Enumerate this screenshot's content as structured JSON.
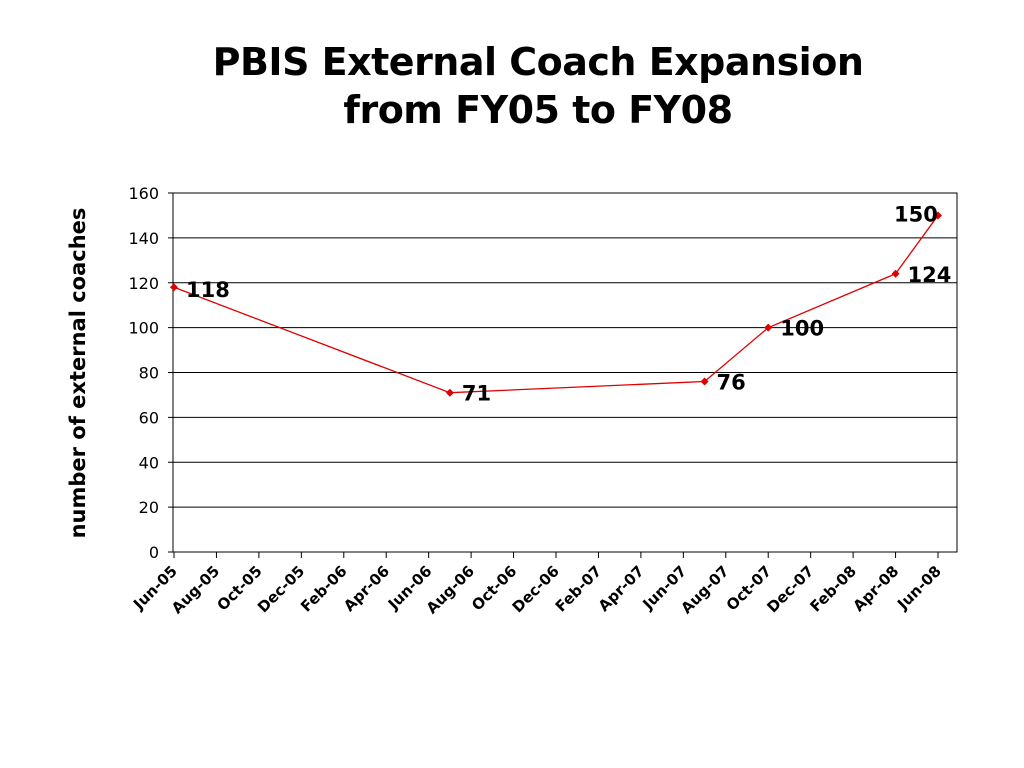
{
  "title_line1": "PBIS External Coach Expansion",
  "title_line2": "from FY05 to FY08",
  "chart_data": {
    "type": "line",
    "title": "PBIS External Coach Expansion from FY05 to FY08",
    "xlabel": "",
    "ylabel": "number of external coaches",
    "ylim": [
      0,
      160
    ],
    "yticks": [
      0,
      20,
      40,
      60,
      80,
      100,
      120,
      140,
      160
    ],
    "x_tick_labels": [
      "Jun-05",
      "Aug-05",
      "Oct-05",
      "Dec-05",
      "Feb-06",
      "Apr-06",
      "Jun-06",
      "Aug-06",
      "Oct-06",
      "Dec-06",
      "Feb-07",
      "Apr-07",
      "Jun-07",
      "Aug-07",
      "Oct-07",
      "Dec-07",
      "Feb-08",
      "Apr-08",
      "Jun-08"
    ],
    "grid": true,
    "series": [
      {
        "color": "#e00000",
        "points": [
          {
            "x": "2005-06",
            "y": 118,
            "label": "118"
          },
          {
            "x": "2006-07",
            "y": 71,
            "label": "71"
          },
          {
            "x": "2007-07",
            "y": 76,
            "label": "76"
          },
          {
            "x": "2007-10",
            "y": 100,
            "label": "100"
          },
          {
            "x": "2008-04",
            "y": 124,
            "label": "124"
          },
          {
            "x": "2008-06",
            "y": 150,
            "label": "150"
          }
        ]
      }
    ]
  }
}
